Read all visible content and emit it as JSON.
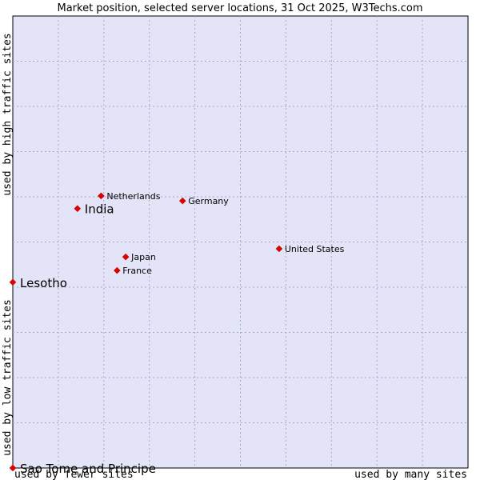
{
  "chart_data": {
    "type": "scatter",
    "title": "Market position, selected server locations, 31 Oct 2025, W3Techs.com",
    "xlabel_left": "used by fewer sites",
    "xlabel_right": "used by many sites",
    "ylabel_top": "used by high traffic sites",
    "ylabel_bottom": "used by low traffic sites",
    "xlim": [
      0,
      100
    ],
    "ylim": [
      0,
      100
    ],
    "grid": true,
    "marker_color": "#e00000",
    "background_color": "#e4e4f8",
    "points": [
      {
        "name": "Netherlands",
        "x": 19.4,
        "y": 60.2,
        "emphasis": false
      },
      {
        "name": "India",
        "x": 14.2,
        "y": 57.4,
        "emphasis": true
      },
      {
        "name": "Germany",
        "x": 37.3,
        "y": 59.1,
        "emphasis": false
      },
      {
        "name": "United States",
        "x": 58.5,
        "y": 48.5,
        "emphasis": false
      },
      {
        "name": "Japan",
        "x": 24.8,
        "y": 46.7,
        "emphasis": false
      },
      {
        "name": "France",
        "x": 22.9,
        "y": 43.7,
        "emphasis": false
      },
      {
        "name": "Lesotho",
        "x": 0.0,
        "y": 41.1,
        "emphasis": true
      },
      {
        "name": "Sao Tome and Principe",
        "x": 0.0,
        "y": 0.0,
        "emphasis": true
      }
    ]
  }
}
